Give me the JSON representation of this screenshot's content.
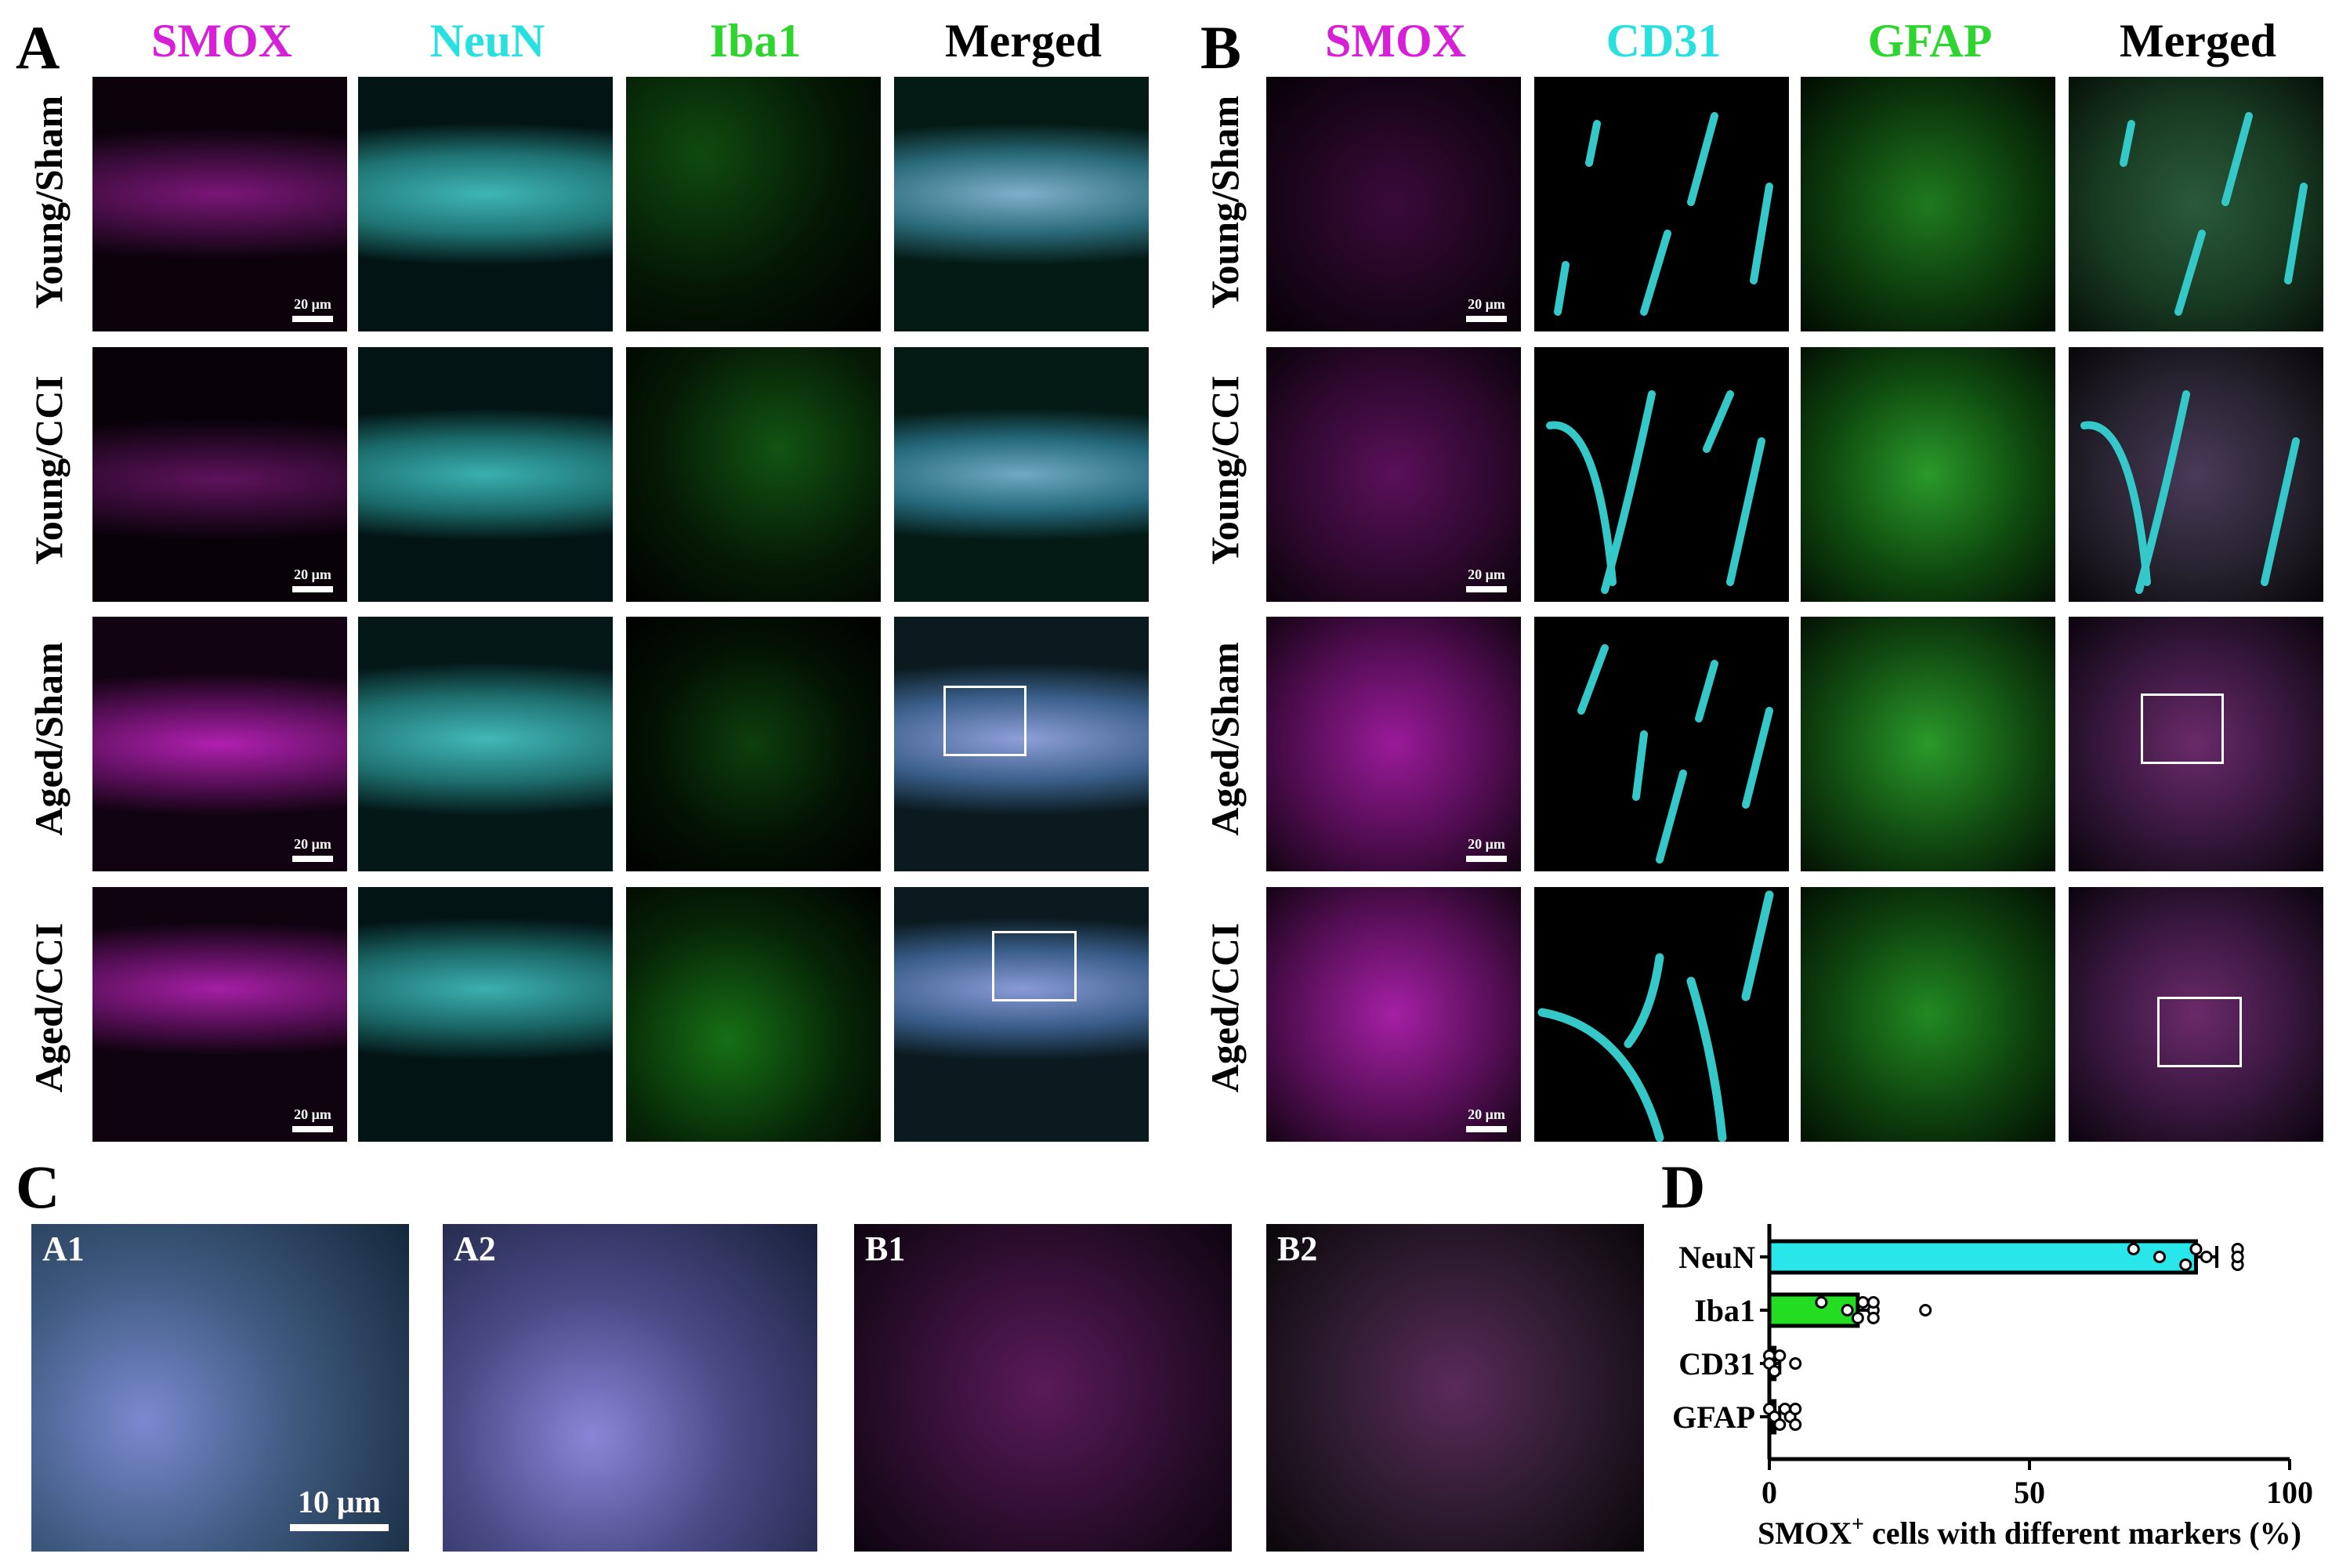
{
  "colors": {
    "smox": "#d61fd6",
    "cyan": "#29e0e0",
    "green": "#2fd52f",
    "black": "#000000",
    "white": "#ffffff"
  },
  "panelA": {
    "label": "A",
    "columns": [
      "SMOX",
      "NeuN",
      "Iba1",
      "Merged"
    ],
    "rows": [
      "Young/Sham",
      "Young/CCI",
      "Aged/Sham",
      "Aged/CCI"
    ],
    "scale": "20 μm"
  },
  "panelB": {
    "label": "B",
    "columns": [
      "SMOX",
      "CD31",
      "GFAP",
      "Merged"
    ],
    "rows": [
      "Young/Sham",
      "Young/CCI",
      "Aged/Sham",
      "Aged/CCI"
    ],
    "scale": "20 μm"
  },
  "panelC": {
    "label": "C",
    "insets": [
      "A1",
      "A2",
      "B1",
      "B2"
    ],
    "scale": "10 μm"
  },
  "panelD": {
    "label": "D"
  },
  "chart_data": {
    "type": "bar",
    "orientation": "horizontal",
    "categories": [
      "NeuN",
      "Iba1",
      "CD31",
      "GFAP"
    ],
    "values": [
      82,
      17,
      1,
      1
    ],
    "errors": [
      4,
      3,
      1,
      1
    ],
    "bar_colors": [
      "#29e6ea",
      "#22dd22",
      "#000000",
      "#000000"
    ],
    "points": [
      [
        70,
        75,
        80,
        82,
        84,
        90,
        90,
        90
      ],
      [
        10,
        15,
        17,
        18,
        20,
        20,
        20,
        30
      ],
      [
        0,
        0,
        1,
        2,
        5
      ],
      [
        0,
        1,
        2,
        3,
        4,
        5,
        5
      ]
    ],
    "xlabel_main": "SMOX",
    "xlabel_sup": "+",
    "xlabel_rest": " cells with different markers (%)",
    "xlim": [
      0,
      100
    ],
    "xticks": [
      0,
      50,
      100
    ]
  }
}
